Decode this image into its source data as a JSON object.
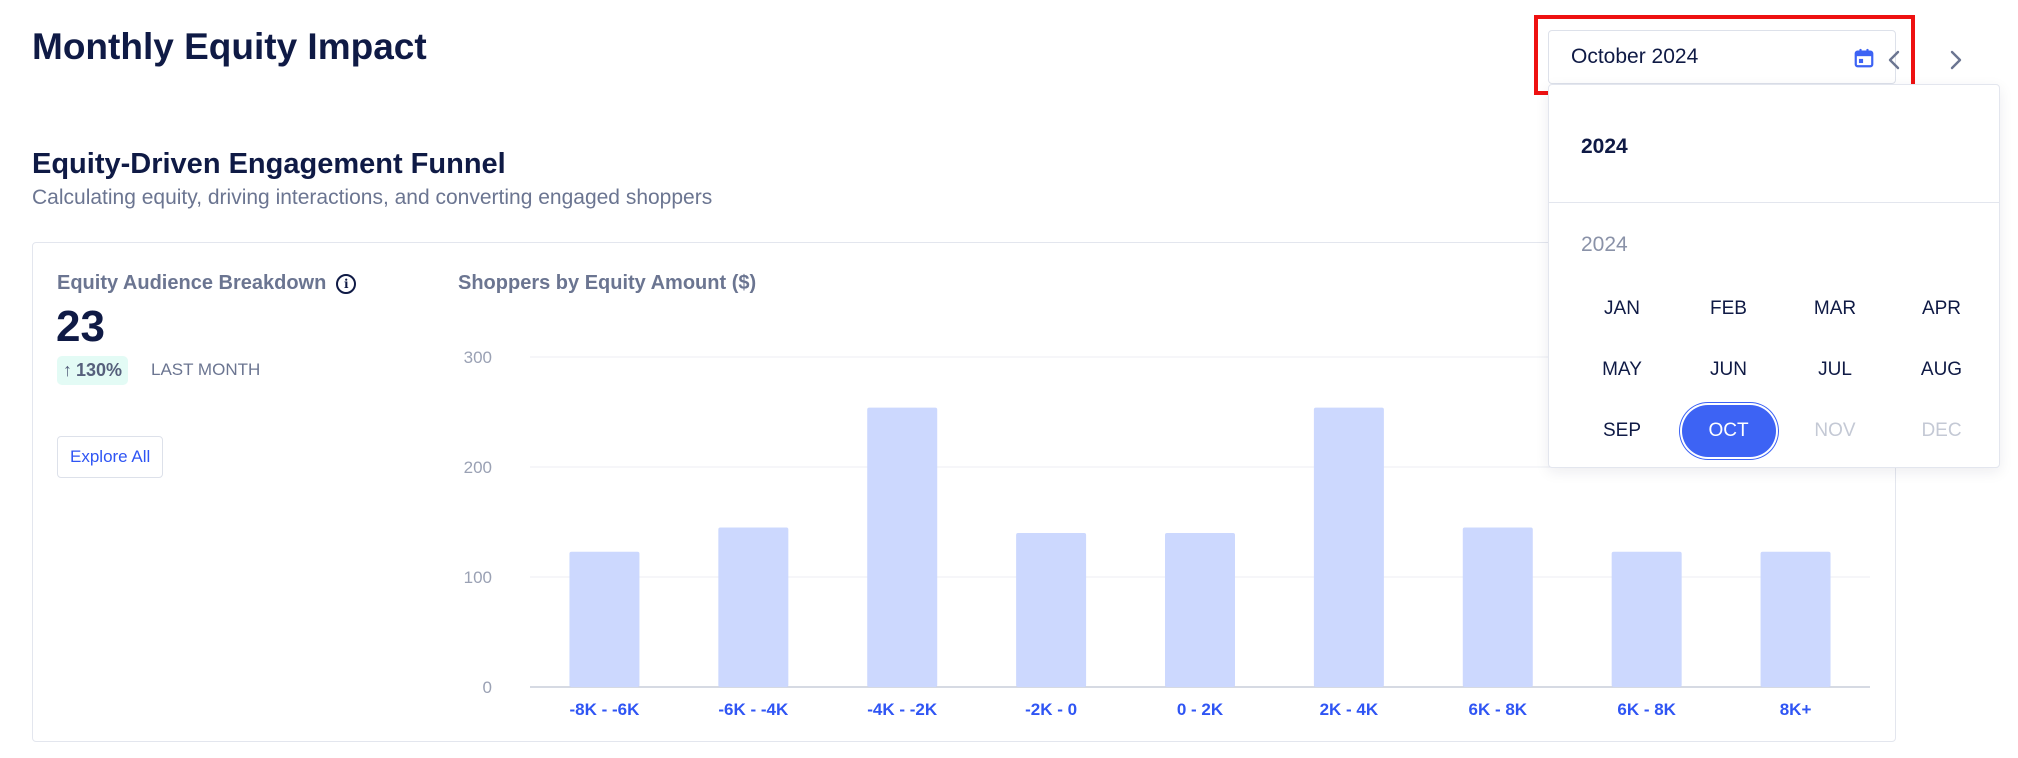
{
  "page": {
    "title": "Monthly Equity Impact"
  },
  "section": {
    "title": "Equity-Driven Engagement Funnel",
    "subtitle": "Calculating equity, driving interactions, and converting engaged shoppers"
  },
  "breakdown": {
    "title": "Equity Audience Breakdown",
    "value": "23",
    "delta": "130%",
    "delta_direction": "up",
    "delta_caption": "LAST MONTH",
    "explore_label": "Explore All"
  },
  "date_picker": {
    "value": "October 2024",
    "header_year": "2024",
    "group_year": "2024",
    "months": [
      {
        "label": "JAN",
        "state": "enabled"
      },
      {
        "label": "FEB",
        "state": "enabled"
      },
      {
        "label": "MAR",
        "state": "enabled"
      },
      {
        "label": "APR",
        "state": "enabled"
      },
      {
        "label": "MAY",
        "state": "enabled"
      },
      {
        "label": "JUN",
        "state": "enabled"
      },
      {
        "label": "JUL",
        "state": "enabled"
      },
      {
        "label": "AUG",
        "state": "enabled"
      },
      {
        "label": "SEP",
        "state": "enabled"
      },
      {
        "label": "OCT",
        "state": "selected"
      },
      {
        "label": "NOV",
        "state": "disabled"
      },
      {
        "label": "DEC",
        "state": "disabled"
      }
    ]
  },
  "colors": {
    "accent": "#3d63f4",
    "bar": "#ccd8fe",
    "highlight": "#ee1111",
    "badge_bg": "#e3fbf5"
  },
  "chart_data": {
    "type": "bar",
    "title": "Shoppers by Equity Amount ($)",
    "categories": [
      "-8K - -6K",
      "-6K - -4K",
      "-4K - -2K",
      "-2K - 0",
      "0 - 2K",
      "2K - 4K",
      "6K - 8K",
      "6K - 8K",
      "8K+"
    ],
    "values": [
      123,
      145,
      254,
      140,
      140,
      254,
      145,
      123,
      123
    ],
    "yticks": [
      0,
      100,
      200,
      300
    ],
    "ylim": [
      0,
      300
    ],
    "grid": true
  }
}
